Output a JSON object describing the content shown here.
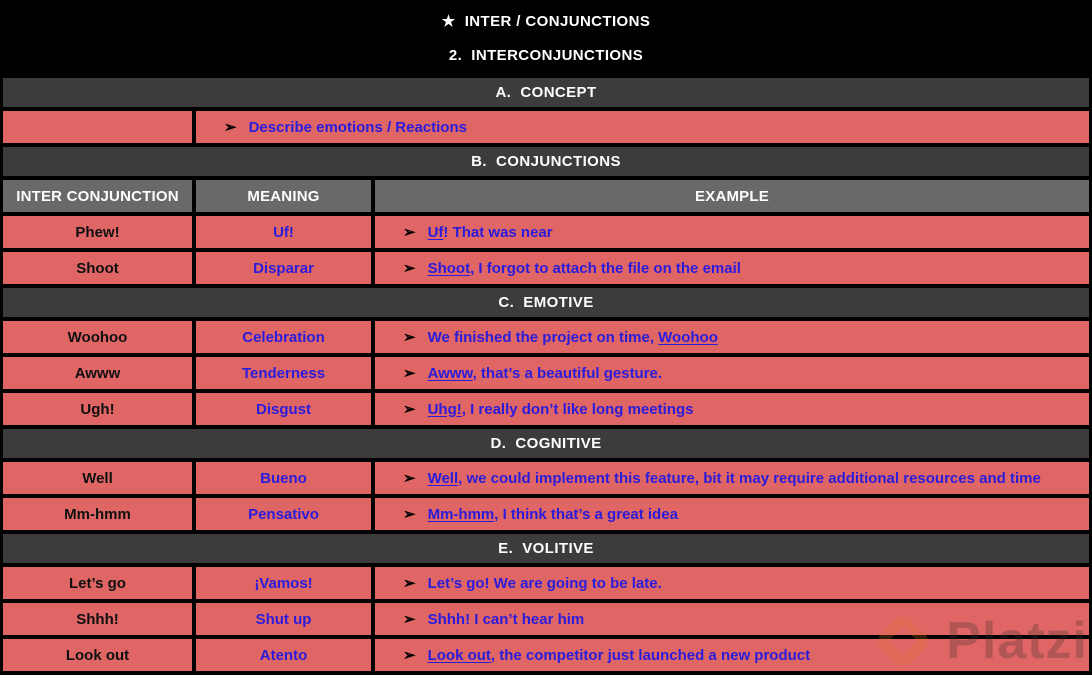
{
  "header": {
    "title": "★  INTER / CONJUNCTIONS",
    "subtitle": "2.  INTERCONJUNCTIONS"
  },
  "arrow_glyph": "➢",
  "columns": [
    "INTER CONJUNCTION",
    "MEANING",
    "EXAMPLE"
  ],
  "colors": {
    "page_bg": "#000000",
    "row_bg": "#e06666",
    "section_bar_bg": "#3c3c3c",
    "column_header_bg": "#696969",
    "text_blue": "#2b1cdb",
    "text_white": "#fdfdfd",
    "text_black": "#101010"
  },
  "sections": [
    {
      "label": "A.  CONCEPT",
      "rows": [
        {
          "word": "",
          "example_parts": [
            {
              "text": "Describe emotions / Reactions",
              "u": false
            }
          ]
        }
      ]
    },
    {
      "label": "B.  CONJUNCTIONS",
      "rows": [
        {
          "word": "Phew!",
          "meaning": "Uf!",
          "example_parts": [
            {
              "text": "Uf",
              "u": true
            },
            {
              "text": "! That was near",
              "u": false
            }
          ]
        },
        {
          "word": "Shoot",
          "meaning": "Disparar",
          "example_parts": [
            {
              "text": "Shoot",
              "u": true
            },
            {
              "text": ", I forgot to attach the file on the email",
              "u": false
            }
          ]
        }
      ]
    },
    {
      "label": "C.  EMOTIVE",
      "rows": [
        {
          "word": "Woohoo",
          "meaning": "Celebration",
          "example_parts": [
            {
              "text": "We finished the project on time, ",
              "u": false
            },
            {
              "text": "Woohoo",
              "u": true
            }
          ]
        },
        {
          "word": "Awww",
          "meaning": "Tenderness",
          "example_parts": [
            {
              "text": "Awww",
              "u": true
            },
            {
              "text": ", that’s a beautiful gesture.",
              "u": false
            }
          ]
        },
        {
          "word": "Ugh!",
          "meaning": "Disgust",
          "example_parts": [
            {
              "text": "Uhg!",
              "u": true
            },
            {
              "text": ", I really don’t like long meetings",
              "u": false
            }
          ]
        }
      ]
    },
    {
      "label": "D.  COGNITIVE",
      "rows": [
        {
          "word": "Well",
          "meaning": "Bueno",
          "example_parts": [
            {
              "text": "Well",
              "u": true
            },
            {
              "text": ", we could implement this feature, bit it may require additional resources and time",
              "u": false
            }
          ]
        },
        {
          "word": "Mm-hmm",
          "meaning": "Pensativo",
          "example_parts": [
            {
              "text": "Mm-hmm",
              "u": true
            },
            {
              "text": ", I think that’s a great idea",
              "u": false
            }
          ]
        }
      ]
    },
    {
      "label": "E.  VOLITIVE",
      "rows": [
        {
          "word": "Let’s go",
          "meaning": "¡Vamos!",
          "example_parts": [
            {
              "text": "Let’s go! We are going to be late.",
              "u": false
            }
          ]
        },
        {
          "word": "Shhh!",
          "meaning": "Shut up",
          "example_parts": [
            {
              "text": "Shhh! I can’t hear him",
              "u": false
            }
          ]
        },
        {
          "word": "Look out",
          "meaning": "Atento",
          "example_parts": [
            {
              "text": "Look out",
              "u": true
            },
            {
              "text": ", the competitor just launched a new product",
              "u": false
            }
          ]
        }
      ]
    }
  ],
  "watermark": {
    "text": "Platzi"
  }
}
